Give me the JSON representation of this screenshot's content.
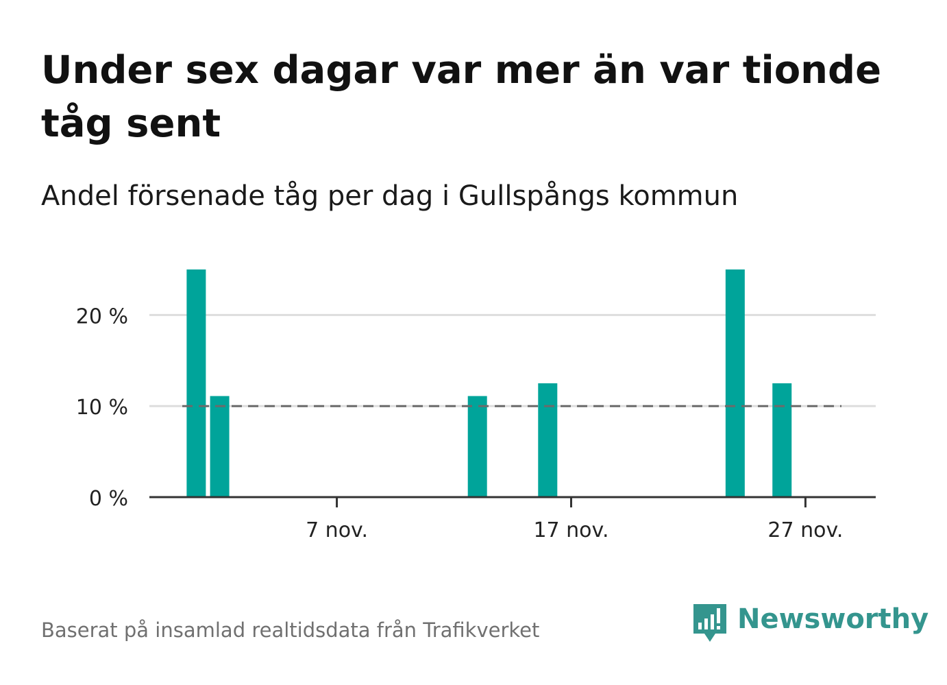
{
  "header": {
    "title": "Under sex dagar var mer än var tionde tåg sent",
    "subtitle": "Andel försenade tåg per dag i Gullspångs kommun"
  },
  "footer": {
    "source": "Baserat på insamlad realtidsdata från Trafikverket",
    "brand": "Newsworthy",
    "brand_icon": "newsworthy-logo-icon"
  },
  "colors": {
    "bar": "#00a49a",
    "grid": "#dddddd",
    "baseline": "#333333",
    "reference_line": "#6b6b6b",
    "brand": "#34958e",
    "tick_text": "#222222",
    "source_text": "#707070"
  },
  "chart_data": {
    "type": "bar",
    "x_type": "date",
    "x": [
      "2023-11-01",
      "2023-11-02",
      "2023-11-13",
      "2023-11-16",
      "2023-11-24",
      "2023-11-26"
    ],
    "x_range": [
      "2023-10-30",
      "2023-11-30"
    ],
    "values": [
      25,
      11.1,
      11.1,
      12.5,
      25,
      12.5
    ],
    "unit": "%",
    "ylim": [
      0,
      25
    ],
    "yticks": [
      0,
      10,
      20
    ],
    "ytick_labels": [
      "0 %",
      "10 %",
      "20 %"
    ],
    "xticks": [
      "2023-11-07",
      "2023-11-17",
      "2023-11-27"
    ],
    "xtick_labels": [
      "7 nov.",
      "17 nov.",
      "27 nov."
    ],
    "reference_line": {
      "value": 10,
      "style": "dashed"
    },
    "grid": true,
    "legend": false
  }
}
